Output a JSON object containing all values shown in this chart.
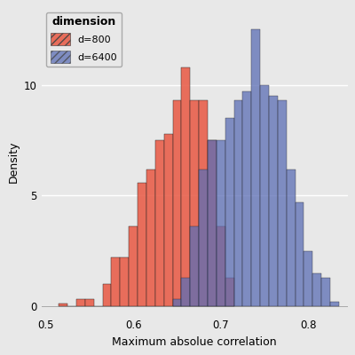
{
  "xlabel": "Maximum absolue correlation",
  "ylabel": "Density",
  "bg_color": "#E8E8E8",
  "grid_color": "#FFFFFF",
  "red_color": "#E8604C",
  "blue_color": "#5B6DB5",
  "red_label": "d=800",
  "blue_label": "d=6400",
  "legend_title": "dimension",
  "bin_width": 0.01,
  "red_bin_starts": [
    0.515,
    0.525,
    0.535,
    0.545,
    0.555,
    0.565,
    0.575,
    0.585,
    0.595,
    0.605,
    0.615,
    0.625,
    0.635,
    0.645,
    0.655,
    0.665,
    0.675,
    0.685,
    0.695,
    0.705
  ],
  "red_heights": [
    0.15,
    0.0,
    0.35,
    0.35,
    0.0,
    1.0,
    2.2,
    2.2,
    3.6,
    5.6,
    6.2,
    7.5,
    7.8,
    9.3,
    10.8,
    9.3,
    9.3,
    7.5,
    3.6,
    1.3
  ],
  "blue_bin_starts": [
    0.645,
    0.655,
    0.665,
    0.675,
    0.685,
    0.695,
    0.705,
    0.715,
    0.725,
    0.735,
    0.745,
    0.755,
    0.765,
    0.775,
    0.785,
    0.795,
    0.805,
    0.815,
    0.825
  ],
  "blue_heights": [
    0.35,
    1.3,
    3.6,
    6.2,
    7.5,
    7.5,
    8.5,
    9.3,
    9.7,
    12.5,
    10.0,
    9.5,
    9.3,
    6.2,
    4.7,
    2.5,
    1.5,
    1.3,
    0.2
  ],
  "xlim": [
    0.495,
    0.845
  ],
  "ylim": [
    -0.4,
    13.5
  ],
  "xticks": [
    0.5,
    0.6,
    0.7,
    0.8
  ],
  "yticks": [
    0,
    5,
    10
  ]
}
